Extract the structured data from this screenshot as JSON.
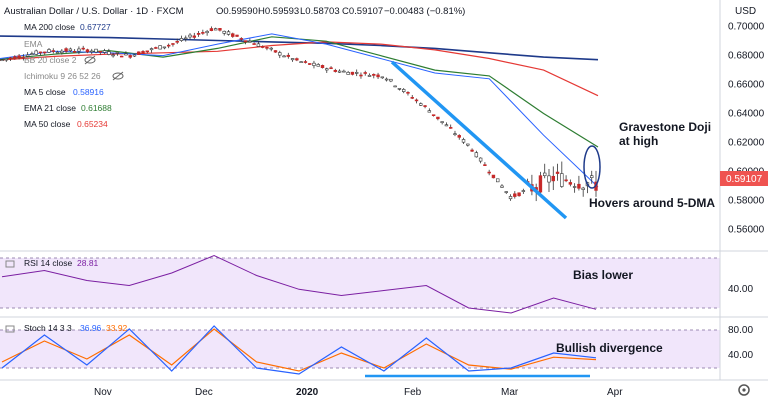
{
  "header": {
    "symbol": "Australian Dollar / U.S. Dollar · 1D · FXCM",
    "open": "O0.59590",
    "high": "H0.59593",
    "low": "L0.58703",
    "close": "C0.59107",
    "change": "−0.00483 (−0.81%)",
    "currency": "USD"
  },
  "legend": [
    {
      "label": "MA 200 close",
      "value": "0.67727",
      "color": "#1e3a8a"
    },
    {
      "label": "EMA",
      "value": "",
      "color": "#888888"
    },
    {
      "label": "BB 20 close 2",
      "value": "",
      "color": "#888888"
    },
    {
      "label": "Ichimoku 9 26 52 26",
      "value": "",
      "color": "#888888"
    },
    {
      "label": "MA 5 close",
      "value": "0.58916",
      "color": "#2962ff"
    },
    {
      "label": "EMA 21 close",
      "value": "0.61688",
      "color": "#2e7d32"
    },
    {
      "label": "MA 50 close",
      "value": "0.65234",
      "color": "#e53935"
    }
  ],
  "annotations": {
    "doji_line1": "Gravestone Doji",
    "doji_line2": "at high",
    "hover": "Hovers around 5-DMA",
    "rsi": "Bias lower",
    "stoch": "Bullish divergence"
  },
  "rsi_legend": {
    "label": "RSI 14 close",
    "value": "28.81"
  },
  "stoch_legend": {
    "label": "Stoch 14 3 3",
    "k": "36.96",
    "d": "33.92"
  },
  "chart_data": {
    "type": "candlestick",
    "price": {
      "ylim": [
        0.545,
        0.715
      ],
      "yticks": [
        "0.70000",
        "0.68000",
        "0.66000",
        "0.64000",
        "0.62000",
        "0.60000",
        "0.58000",
        "0.56000"
      ],
      "ytick_values": [
        0.7,
        0.68,
        0.66,
        0.64,
        0.62,
        0.6,
        0.58,
        0.56
      ],
      "last_price_label": "0.59107",
      "last_price": 0.59107
    },
    "rsi": {
      "ylim": [
        20,
        80
      ],
      "ytick": "40.00",
      "ytick_value": 40,
      "band": [
        30,
        70
      ]
    },
    "stoch": {
      "ylim": [
        0,
        100
      ],
      "yticks": [
        "80.00",
        "40.00"
      ],
      "ytick_values": [
        80,
        40
      ],
      "band": [
        20,
        80
      ]
    },
    "xticks": [
      "Nov",
      "Dec",
      "2020",
      "Feb",
      "Mar",
      "Apr"
    ],
    "ma200": [
      0.6935,
      0.693,
      0.6925,
      0.6915,
      0.6905,
      0.6895,
      0.6885,
      0.687,
      0.685,
      0.682,
      0.679,
      0.6772
    ],
    "ma50": [
      0.677,
      0.6795,
      0.681,
      0.682,
      0.683,
      0.687,
      0.6895,
      0.688,
      0.684,
      0.678,
      0.67,
      0.6523
    ],
    "ema21": [
      0.6775,
      0.681,
      0.6835,
      0.679,
      0.685,
      0.693,
      0.69,
      0.68,
      0.67,
      0.666,
      0.64,
      0.6169
    ],
    "ma5": [
      0.678,
      0.683,
      0.682,
      0.68,
      0.688,
      0.695,
      0.688,
      0.678,
      0.668,
      0.664,
      0.625,
      0.5892
    ],
    "close": [
      0.677,
      0.683,
      0.684,
      0.68,
      0.688,
      0.699,
      0.688,
      0.676,
      0.669,
      0.666,
      0.644,
      0.618,
      0.582,
      0.596,
      0.5911
    ],
    "rsi_values": [
      55,
      60,
      52,
      48,
      58,
      72,
      56,
      45,
      40,
      44,
      48,
      30,
      26,
      38,
      29
    ],
    "stoch_k": [
      20,
      75,
      25,
      85,
      15,
      90,
      20,
      10,
      55,
      15,
      70,
      15,
      20,
      45,
      37
    ],
    "stoch_d": [
      30,
      65,
      35,
      75,
      25,
      85,
      30,
      15,
      45,
      20,
      60,
      25,
      18,
      38,
      34
    ]
  }
}
